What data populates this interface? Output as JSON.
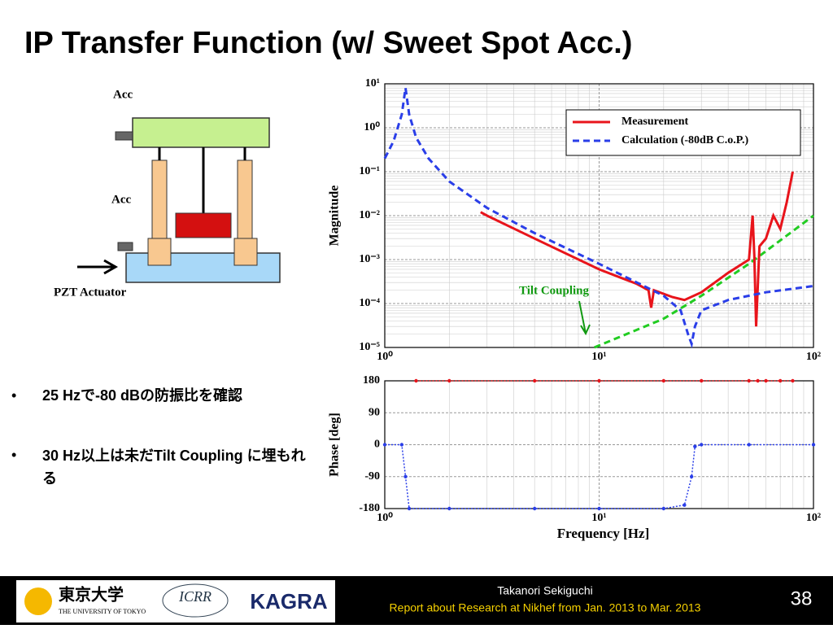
{
  "header": {
    "title": "IP Transfer Function (w/ Sweet Spot Acc.)"
  },
  "diagram": {
    "labels": [
      "Acc",
      "Acc",
      "PZT Actuator"
    ]
  },
  "bullets": [
    "25 Hzで-80 dBの防振比を確認",
    "30 Hz以上は未だTilt Coupling に埋もれる"
  ],
  "footer": {
    "logos": [
      "東京大学",
      "THE UNIVERSITY OF TOKYO",
      "ICRR",
      "KAGRA"
    ],
    "author": "Takanori Sekiguchi",
    "report": "Report about Research at Nikhef from Jan. 2013 to Mar. 2013",
    "page": "38"
  },
  "chart_data": [
    {
      "type": "line",
      "ylabel": "Magnitude",
      "xscale": "log",
      "yscale": "log",
      "xlim": [
        1,
        100
      ],
      "ylim": [
        1e-05,
        10
      ],
      "xticks": [
        {
          "value": 1,
          "label": "10⁰"
        },
        {
          "value": 10,
          "label": "10¹"
        },
        {
          "value": 100,
          "label": "10²"
        }
      ],
      "yticks": [
        {
          "value": 1e-05,
          "label": "10⁻⁵"
        },
        {
          "value": 0.0001,
          "label": "10⁻⁴"
        },
        {
          "value": 0.001,
          "label": "10⁻³"
        },
        {
          "value": 0.01,
          "label": "10⁻²"
        },
        {
          "value": 0.1,
          "label": "10⁻¹"
        },
        {
          "value": 1,
          "label": "10⁰"
        },
        {
          "value": 10,
          "label": "10¹"
        }
      ],
      "grid": true,
      "minor_grid": true,
      "legend": "upper right",
      "series": [
        {
          "name": "Measurement",
          "color": "#e8141b",
          "style": "solid",
          "x": [
            2.8,
            3,
            5,
            10,
            15,
            17,
            17.5,
            18,
            22,
            25,
            30,
            40,
            50,
            52,
            53,
            54,
            56,
            60,
            65,
            70,
            75,
            80
          ],
          "values": [
            0.012,
            0.01,
            0.003,
            0.0006,
            0.00028,
            0.0002,
            8e-05,
            0.0002,
            0.00014,
            0.00012,
            0.00018,
            0.0005,
            0.001,
            0.01,
            0.0012,
            3e-05,
            0.002,
            0.003,
            0.01,
            0.005,
            0.02,
            0.1
          ]
        },
        {
          "name": "Calculation (-80dB C.o.P.)",
          "color": "#2a3ee8",
          "style": "dashed",
          "x": [
            1,
            1.1,
            1.2,
            1.25,
            1.3,
            1.4,
            1.6,
            2,
            3,
            5,
            10,
            15,
            20,
            24,
            26,
            27,
            28,
            30,
            40,
            60,
            100
          ],
          "values": [
            0.2,
            0.5,
            2,
            8,
            2,
            0.6,
            0.2,
            0.06,
            0.015,
            0.004,
            0.0008,
            0.0003,
            0.00015,
            7e-05,
            2e-05,
            1.2e-05,
            3e-05,
            7e-05,
            0.00012,
            0.00018,
            0.00025
          ]
        }
      ],
      "tilt_coupling": {
        "annotation": "Tilt Coupling",
        "color": "#22cc22",
        "x": [
          9.5,
          20,
          30,
          50,
          100
        ],
        "values": [
          1e-05,
          4.5e-05,
          0.00015,
          0.0008,
          0.01
        ]
      }
    },
    {
      "type": "line",
      "ylabel": "Phase [deg]",
      "xlabel": "Frequency [Hz]",
      "xscale": "log",
      "xlim": [
        1,
        100
      ],
      "ylim": [
        -180,
        180
      ],
      "xticks": [
        {
          "value": 1,
          "label": "10⁰"
        },
        {
          "value": 10,
          "label": "10¹"
        },
        {
          "value": 100,
          "label": "10²"
        }
      ],
      "yticks": [
        -180,
        -90,
        0,
        90,
        180
      ],
      "grid": true,
      "minor_grid": true,
      "series": [
        {
          "name": "Measurement",
          "color": "#e8141b",
          "style": "dots",
          "x": [
            1.4,
            2,
            5,
            10,
            20,
            30,
            50,
            55,
            60,
            70,
            80
          ],
          "values": [
            180,
            180,
            180,
            180,
            180,
            180,
            180,
            180,
            180,
            180,
            180
          ]
        },
        {
          "name": "Calculation (-80dB C.o.P.)",
          "color": "#2a3ee8",
          "style": "dots",
          "x": [
            1,
            1.2,
            1.25,
            1.3,
            2,
            5,
            10,
            20,
            25,
            27,
            28,
            30,
            50,
            100
          ],
          "values": [
            0,
            0,
            -90,
            -180,
            -180,
            -180,
            -180,
            -180,
            -170,
            -90,
            -5,
            0,
            0,
            0
          ]
        }
      ]
    }
  ]
}
